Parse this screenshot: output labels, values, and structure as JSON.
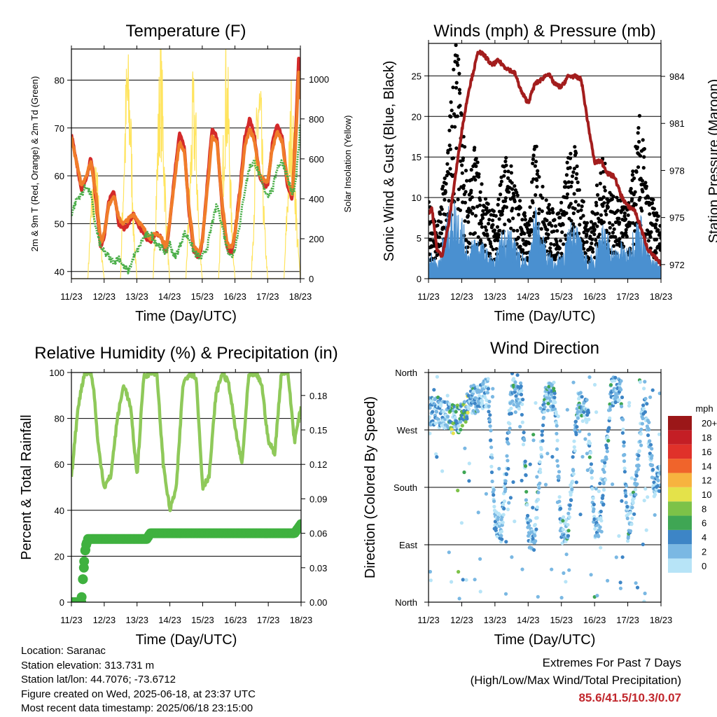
{
  "chart_data": [
    {
      "type": "line",
      "title": "Temperature (F)",
      "xlabel": "Time (Day/UTC)",
      "ylabel": "2m & 9m T (Red, Orange) & 2m Td (Green)",
      "ylabel_right": "Solar Insolation (Yellow)",
      "x_ticks": [
        "11/23",
        "12/23",
        "13/23",
        "14/23",
        "15/23",
        "16/23",
        "17/23",
        "18/23"
      ],
      "ylim": [
        38.5,
        86.5
      ],
      "y_ticks": [
        40,
        50,
        60,
        70,
        80
      ],
      "ylim_right": [
        0,
        1150
      ],
      "y_ticks_right": [
        0,
        200,
        400,
        600,
        800,
        1000
      ],
      "series": [
        {
          "name": "2m T",
          "color": "#d42a2a",
          "axis": "left",
          "x": [
            0,
            0.15,
            0.3,
            0.45,
            0.6,
            0.75,
            0.9,
            1.0,
            1.15,
            1.3,
            1.45,
            1.6,
            1.75,
            1.9,
            2.0,
            2.2,
            2.4,
            2.6,
            2.75,
            2.9,
            3.0,
            3.15,
            3.3,
            3.45,
            3.6,
            3.75,
            3.9,
            4.0,
            4.15,
            4.3,
            4.45,
            4.6,
            4.75,
            4.9,
            5.0,
            5.15,
            5.3,
            5.45,
            5.6,
            5.75,
            5.9,
            6.0,
            6.15,
            6.3,
            6.45,
            6.6,
            6.75,
            6.85,
            6.95,
            7.0
          ],
          "values": [
            69,
            63,
            57,
            59,
            64,
            55,
            45,
            47,
            55,
            57,
            50,
            49,
            50,
            52,
            50,
            48,
            46,
            48,
            47,
            44,
            50,
            60,
            69,
            66,
            52,
            44,
            43,
            46,
            58,
            70,
            68,
            54,
            45,
            44,
            48,
            57,
            68,
            72,
            68,
            60,
            58,
            58,
            67,
            71,
            68,
            58,
            55,
            68,
            85,
            76
          ]
        },
        {
          "name": "9m T",
          "color": "#f07c2a",
          "axis": "left",
          "x": [
            0,
            0.15,
            0.3,
            0.45,
            0.6,
            0.75,
            0.9,
            1.0,
            1.15,
            1.3,
            1.45,
            1.6,
            1.75,
            1.9,
            2.0,
            2.2,
            2.4,
            2.6,
            2.75,
            2.9,
            3.0,
            3.15,
            3.3,
            3.45,
            3.6,
            3.75,
            3.9,
            4.0,
            4.15,
            4.3,
            4.45,
            4.6,
            4.75,
            4.9,
            5.0,
            5.15,
            5.3,
            5.45,
            5.6,
            5.75,
            5.9,
            6.0,
            6.15,
            6.3,
            6.45,
            6.6,
            6.75,
            6.85,
            6.95,
            7.0
          ],
          "values": [
            68,
            63,
            58,
            60,
            63,
            56,
            46,
            48,
            54,
            56,
            51,
            50,
            51,
            52,
            51,
            49,
            47,
            48,
            47,
            45,
            50,
            59,
            67,
            65,
            53,
            45,
            44,
            46,
            57,
            68,
            67,
            55,
            46,
            45,
            48,
            56,
            66,
            70,
            67,
            60,
            59,
            59,
            66,
            69,
            67,
            59,
            56,
            66,
            82,
            76
          ]
        },
        {
          "name": "2m Td",
          "color": "#4aae48",
          "axis": "left",
          "x": [
            0,
            0.15,
            0.3,
            0.45,
            0.6,
            0.75,
            0.9,
            1.0,
            1.15,
            1.3,
            1.45,
            1.6,
            1.75,
            1.9,
            2.0,
            2.2,
            2.4,
            2.6,
            2.75,
            2.9,
            3.0,
            3.15,
            3.3,
            3.45,
            3.6,
            3.75,
            3.9,
            4.0,
            4.15,
            4.3,
            4.45,
            4.6,
            4.75,
            4.9,
            5.0,
            5.15,
            5.3,
            5.45,
            5.6,
            5.75,
            5.9,
            6.0,
            6.15,
            6.3,
            6.45,
            6.6,
            6.75,
            6.85,
            6.95,
            7.0
          ],
          "values": [
            52,
            55,
            56,
            58,
            56,
            49,
            45,
            44,
            43,
            42,
            43,
            41,
            40,
            43,
            44,
            47,
            48,
            46,
            45,
            44,
            46,
            43,
            45,
            48,
            47,
            44,
            43,
            43,
            45,
            50,
            54,
            50,
            45,
            43,
            45,
            50,
            57,
            62,
            63,
            60,
            57,
            56,
            57,
            62,
            63,
            60,
            56,
            58,
            66,
            71
          ]
        },
        {
          "name": "Solar Insolation",
          "color": "#ffe45e",
          "axis": "right",
          "x": [
            0,
            0.5,
            0.62,
            0.72,
            0.8,
            0.9,
            1.0,
            1.5,
            1.6,
            1.7,
            1.8,
            1.9,
            2.0,
            2.5,
            2.62,
            2.72,
            2.8,
            2.9,
            3.0,
            3.5,
            3.62,
            3.72,
            3.8,
            3.9,
            4.0,
            4.5,
            4.62,
            4.72,
            4.8,
            4.9,
            5.0,
            5.5,
            5.62,
            5.72,
            5.8,
            5.9,
            6.0,
            6.5,
            6.62,
            6.72,
            6.8,
            6.9,
            7.0
          ],
          "values": [
            0,
            0,
            420,
            520,
            480,
            200,
            0,
            0,
            600,
            1080,
            900,
            300,
            0,
            0,
            600,
            1150,
            850,
            300,
            0,
            0,
            500,
            950,
            800,
            250,
            0,
            0,
            550,
            1100,
            900,
            300,
            0,
            0,
            600,
            1000,
            850,
            280,
            0,
            0,
            500,
            900,
            700,
            250,
            0
          ]
        }
      ]
    },
    {
      "type": "scatter",
      "title": "Winds (mph) & Pressure (mb)",
      "xlabel": "Time (Day/UTC)",
      "ylabel": "Sonic Wind & Gust (Blue, Black)",
      "ylabel_right": "Station Pressure (Maroon)",
      "x_ticks": [
        "11/23",
        "12/23",
        "13/23",
        "14/23",
        "15/23",
        "16/23",
        "17/23",
        "18/23"
      ],
      "ylim": [
        0,
        29
      ],
      "y_ticks": [
        0,
        5,
        10,
        15,
        20,
        25
      ],
      "ylim_right": [
        971.1,
        986.1
      ],
      "y_ticks_right": [
        972,
        975,
        978,
        981,
        984
      ],
      "series": [
        {
          "name": "Sonic Wind",
          "color": "#4a90d0",
          "axis": "left",
          "kind": "area",
          "x": [
            0,
            0.3,
            0.5,
            0.7,
            0.9,
            1.0,
            1.2,
            1.4,
            1.6,
            1.8,
            2.0,
            2.2,
            2.4,
            2.6,
            2.8,
            3.0,
            3.2,
            3.4,
            3.6,
            3.8,
            4.0,
            4.2,
            4.4,
            4.6,
            4.8,
            5.0,
            5.2,
            5.4,
            5.6,
            5.8,
            6.0,
            6.2,
            6.4,
            6.6,
            6.8,
            7.0
          ],
          "values": [
            3,
            2,
            6,
            9,
            8,
            7,
            3,
            5,
            4,
            3,
            2,
            5,
            6,
            4,
            3,
            2,
            8,
            5,
            3,
            2,
            3,
            5,
            7,
            4,
            2,
            3,
            6,
            5,
            3,
            4,
            3,
            6,
            7,
            3,
            2,
            2
          ]
        },
        {
          "name": "Gust",
          "color": "#000000",
          "axis": "left",
          "kind": "scatter",
          "x": [
            0,
            0.3,
            0.5,
            0.7,
            0.8,
            0.9,
            1.0,
            1.2,
            1.4,
            1.6,
            1.8,
            2.0,
            2.2,
            2.4,
            2.6,
            2.8,
            3.0,
            3.2,
            3.4,
            3.6,
            3.8,
            4.0,
            4.2,
            4.4,
            4.6,
            4.8,
            5.0,
            5.2,
            5.4,
            5.6,
            5.8,
            6.0,
            6.2,
            6.4,
            6.6,
            6.8,
            7.0
          ],
          "values": [
            8,
            6,
            12,
            20,
            27,
            23,
            18,
            9,
            14,
            10,
            8,
            7,
            12,
            13,
            10,
            8,
            6,
            15,
            10,
            8,
            7,
            8,
            13,
            14,
            9,
            6,
            8,
            13,
            11,
            8,
            9,
            7,
            13,
            18,
            9,
            8,
            6
          ]
        },
        {
          "name": "Station Pressure",
          "color": "#a31d1d",
          "axis": "right",
          "kind": "line",
          "x": [
            0,
            0.1,
            0.25,
            0.4,
            0.6,
            0.8,
            1.0,
            1.2,
            1.5,
            1.7,
            1.9,
            2.1,
            2.3,
            2.6,
            2.8,
            3.0,
            3.2,
            3.4,
            3.6,
            3.8,
            4.0,
            4.2,
            4.4,
            4.6,
            4.8,
            5.0,
            5.2,
            5.4,
            5.6,
            5.8,
            6.0,
            6.2,
            6.4,
            6.6,
            6.8,
            7.0
          ],
          "values": [
            975.3,
            975.6,
            973.0,
            972.5,
            974.5,
            977.5,
            980.5,
            983.0,
            985.6,
            985.3,
            984.7,
            985.0,
            984.6,
            984.2,
            983.0,
            982.3,
            983.5,
            983.8,
            984.2,
            983.5,
            983.3,
            984.0,
            984.0,
            983.8,
            981.0,
            978.5,
            978.6,
            977.8,
            977.6,
            976.4,
            975.7,
            975.5,
            974.3,
            973.0,
            972.5,
            972.0
          ]
        }
      ]
    },
    {
      "type": "line",
      "title": "Relative Humidity (%) & Precipitation (in)",
      "xlabel": "Time (Day/UTC)",
      "ylabel": "Percent & Total Rainfall",
      "x_ticks": [
        "11/23",
        "12/23",
        "13/23",
        "14/23",
        "15/23",
        "16/23",
        "17/23",
        "18/23"
      ],
      "ylim": [
        0,
        100
      ],
      "y_ticks": [
        0,
        20,
        40,
        60,
        80,
        100
      ],
      "ylim_right": [
        0,
        0.2
      ],
      "y_ticks_right": [
        "0.00",
        "0.03",
        "0.06",
        "0.09",
        "0.12",
        "0.15",
        "0.18"
      ],
      "series": [
        {
          "name": "Relative Humidity",
          "color": "#8fc95a",
          "axis": "left",
          "x": [
            0,
            0.2,
            0.4,
            0.6,
            0.7,
            0.8,
            1.0,
            1.2,
            1.4,
            1.6,
            1.8,
            2.0,
            2.2,
            2.4,
            2.6,
            2.8,
            3.0,
            3.2,
            3.4,
            3.6,
            3.8,
            4.0,
            4.2,
            4.4,
            4.6,
            4.8,
            5.0,
            5.2,
            5.4,
            5.6,
            5.8,
            6.0,
            6.2,
            6.4,
            6.6,
            6.8,
            7.0
          ],
          "values": [
            54,
            85,
            100,
            100,
            90,
            70,
            50,
            55,
            80,
            95,
            85,
            55,
            98,
            100,
            100,
            60,
            40,
            50,
            95,
            100,
            98,
            50,
            55,
            90,
            100,
            95,
            75,
            60,
            98,
            100,
            95,
            70,
            65,
            100,
            100,
            70,
            85
          ]
        },
        {
          "name": "Total Precipitation",
          "color": "#3fb13f",
          "axis": "right",
          "x": [
            0,
            0.3,
            0.35,
            0.4,
            0.45,
            0.5,
            0.6,
            1.0,
            1.5,
            2.0,
            2.3,
            2.4,
            3.0,
            4.0,
            5.0,
            6.0,
            6.8,
            6.9,
            7.0
          ],
          "values": [
            0,
            0,
            0.02,
            0.04,
            0.05,
            0.055,
            0.055,
            0.055,
            0.055,
            0.055,
            0.055,
            0.06,
            0.06,
            0.06,
            0.06,
            0.06,
            0.06,
            0.064,
            0.068
          ]
        }
      ]
    },
    {
      "type": "scatter",
      "title": "Wind Direction",
      "xlabel": "Time (Day/UTC)",
      "ylabel": "Direction (Colored By Speed)",
      "x_ticks": [
        "11/23",
        "12/23",
        "13/23",
        "14/23",
        "15/23",
        "16/23",
        "17/23",
        "18/23"
      ],
      "y_categories": [
        "North",
        "East",
        "South",
        "West",
        "North"
      ],
      "y_values": [
        0,
        90,
        180,
        270,
        360
      ],
      "colorbar": {
        "title": "mph",
        "labels": [
          "0",
          "2",
          "4",
          "6",
          "8",
          "10",
          "12",
          "14",
          "16",
          "18",
          "20+"
        ],
        "colors": [
          "#b7e4f7",
          "#7ab8e3",
          "#3d85c6",
          "#3fa654",
          "#7dc248",
          "#e4e24a",
          "#f7b33f",
          "#f0642b",
          "#e0312a",
          "#c41e25",
          "#9b1718"
        ]
      },
      "series": [
        {
          "name": "Direction",
          "x": [
            0.3,
            0.6,
            0.8,
            1.0,
            1.2,
            1.5,
            1.8,
            2.0,
            2.2,
            2.5,
            2.8,
            3.0,
            3.2,
            3.5,
            3.8,
            4.0,
            4.2,
            4.5,
            4.8,
            5.0,
            5.2,
            5.5,
            5.8,
            6.0,
            6.2,
            6.5,
            6.8,
            7.0
          ],
          "values": [
            300,
            290,
            285,
            290,
            315,
            320,
            330,
            120,
            115,
            330,
            320,
            110,
            100,
            320,
            325,
            110,
            120,
            310,
            300,
            115,
            125,
            330,
            330,
            115,
            160,
            330,
            180,
            200
          ]
        }
      ]
    }
  ],
  "info": {
    "location": "Location: Saranac",
    "elevation": "Station elevation: 313.731 m",
    "latlon": "Station lat/lon: 44.7076; -73.6712",
    "created": "Figure created on Wed, 2025-06-18, at 23:37 UTC",
    "timestamp": "Most recent data timestamp: 2025/06/18 23:15:00"
  },
  "extremes": {
    "title": "Extremes For Past 7 Days",
    "subtitle": "(High/Low/Max Wind/Total Precipitation)",
    "values": "85.6/41.5/10.3/0.07",
    "values_color": "#c1272d"
  }
}
